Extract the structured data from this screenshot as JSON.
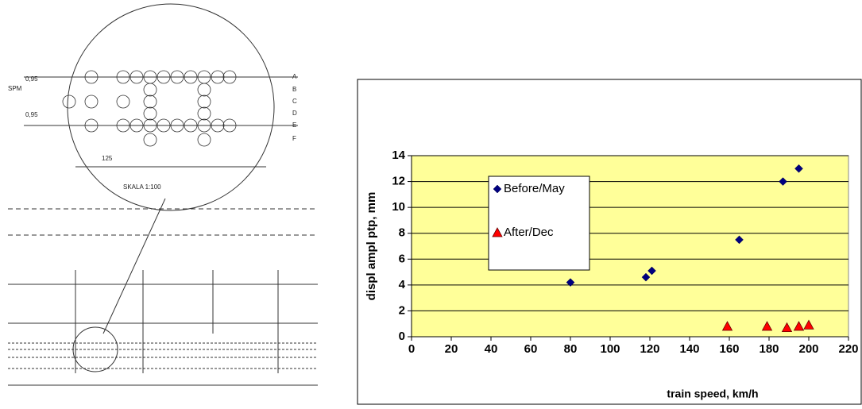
{
  "drawing": {
    "labels": [
      "SPM",
      "0,95",
      "0,95",
      "125",
      "SKALA 1:100",
      "A",
      "B",
      "C",
      "D",
      "E",
      "F"
    ]
  },
  "chart_data": {
    "type": "scatter",
    "x_label": "train speed, km/h",
    "y_label": "displ ampl ptp, mm",
    "xlim": [
      0,
      220
    ],
    "xticks": [
      0,
      20,
      40,
      60,
      80,
      100,
      120,
      140,
      160,
      180,
      200,
      220
    ],
    "ylim": [
      0,
      14
    ],
    "yticks": [
      0,
      2,
      4,
      6,
      8,
      10,
      12,
      14
    ],
    "grid": true,
    "series": [
      {
        "name": "Before/May",
        "color": "#000080",
        "marker": "diamond",
        "x": [
          80,
          118,
          121,
          165,
          187,
          195
        ],
        "values": [
          4.2,
          4.6,
          5.1,
          7.5,
          12,
          13
        ]
      },
      {
        "name": "After/Dec",
        "color": "#ff0000",
        "marker": "triangle",
        "x": [
          159,
          179,
          189,
          195,
          200
        ],
        "values": [
          0.8,
          0.8,
          0.7,
          0.8,
          0.9
        ]
      }
    ]
  }
}
